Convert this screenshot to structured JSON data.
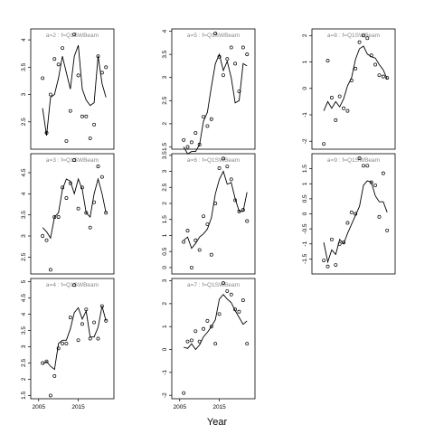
{
  "figure": {
    "xlabel": "Year"
  },
  "chart_data": [
    {
      "type": "line",
      "title": "a=2  :  f=Q1SWBeam",
      "xlim": [
        2003,
        2024
      ],
      "ylim": [
        2.0,
        4.2
      ],
      "xticks": [],
      "yticks": [
        2.5,
        3.0,
        3.5,
        4.0
      ],
      "series": [
        {
          "mode": "points",
          "x": [
            2006,
            2007,
            2008,
            2009,
            2010,
            2011,
            2012,
            2013,
            2014,
            2015,
            2016,
            2017,
            2018,
            2019,
            2020,
            2021,
            2022
          ],
          "y": [
            3.3,
            2.3,
            3.0,
            3.65,
            3.55,
            3.85,
            2.15,
            2.7,
            4.1,
            3.35,
            2.6,
            2.6,
            2.2,
            2.45,
            3.7,
            3.4,
            3.5
          ]
        },
        {
          "mode": "line",
          "x": [
            2006,
            2007,
            2008,
            2009,
            2010,
            2011,
            2012,
            2013,
            2014,
            2015,
            2016,
            2017,
            2018,
            2019,
            2020,
            2021,
            2022
          ],
          "y": [
            2.75,
            2.25,
            2.95,
            3.0,
            3.3,
            3.7,
            3.4,
            3.1,
            3.7,
            3.9,
            3.1,
            2.9,
            2.8,
            2.85,
            3.7,
            3.2,
            2.95
          ]
        }
      ]
    },
    {
      "type": "line",
      "title": "a=5  :  f=Q1SWBeam",
      "xlim": [
        2003,
        2024
      ],
      "ylim": [
        1.45,
        4.05
      ],
      "xticks": [],
      "yticks": [
        1.5,
        2.0,
        2.5,
        3.0,
        3.5,
        4.0
      ],
      "series": [
        {
          "mode": "points",
          "x": [
            2006,
            2007,
            2008,
            2009,
            2010,
            2011,
            2012,
            2013,
            2014,
            2015,
            2016,
            2017,
            2018,
            2019,
            2020,
            2021,
            2022
          ],
          "y": [
            1.65,
            1.5,
            1.6,
            1.8,
            1.55,
            2.15,
            1.95,
            2.1,
            3.95,
            3.45,
            3.05,
            3.4,
            3.65,
            3.3,
            2.7,
            3.65,
            3.5
          ]
        },
        {
          "mode": "line",
          "x": [
            2006,
            2007,
            2008,
            2009,
            2010,
            2011,
            2012,
            2013,
            2014,
            2015,
            2016,
            2017,
            2018,
            2019,
            2020,
            2021,
            2022
          ],
          "y": [
            1.5,
            1.35,
            1.4,
            1.4,
            1.55,
            2.05,
            2.25,
            2.8,
            3.3,
            3.5,
            3.15,
            3.35,
            3.0,
            2.45,
            2.5,
            3.3,
            3.25
          ]
        }
      ]
    },
    {
      "type": "line",
      "title": "a=8  :  f=Q1SWBeam",
      "xlim": [
        2003,
        2024
      ],
      "ylim": [
        -2.3,
        2.25
      ],
      "xticks": [],
      "yticks": [
        -2,
        -1,
        0,
        1,
        2
      ],
      "series": [
        {
          "mode": "points",
          "x": [
            2006,
            2007,
            2008,
            2009,
            2010,
            2011,
            2012,
            2013,
            2014,
            2015,
            2016,
            2017,
            2018,
            2019,
            2020,
            2021,
            2022
          ],
          "y": [
            -2.1,
            1.05,
            -0.35,
            -1.2,
            -0.3,
            -0.75,
            -0.85,
            0.3,
            0.75,
            1.75,
            2.0,
            1.9,
            1.25,
            0.9,
            0.5,
            0.45,
            0.4
          ]
        },
        {
          "mode": "line",
          "x": [
            2006,
            2007,
            2008,
            2009,
            2010,
            2011,
            2012,
            2013,
            2014,
            2015,
            2016,
            2017,
            2018,
            2019,
            2020,
            2021,
            2022
          ],
          "y": [
            -0.85,
            -0.5,
            -0.75,
            -0.5,
            -0.7,
            -0.4,
            0.1,
            0.4,
            1.1,
            1.5,
            1.6,
            1.3,
            1.2,
            1.15,
            0.9,
            0.7,
            0.35
          ]
        }
      ]
    },
    {
      "type": "line",
      "title": "a=3  :  f=Q1SWBeam",
      "xlim": [
        2003,
        2024
      ],
      "ylim": [
        2.1,
        4.95
      ],
      "xticks": [],
      "yticks": [
        2.5,
        3.0,
        3.5,
        4.0,
        4.5
      ],
      "series": [
        {
          "mode": "points",
          "x": [
            2006,
            2007,
            2008,
            2009,
            2010,
            2011,
            2012,
            2013,
            2014,
            2015,
            2016,
            2017,
            2018,
            2019,
            2020,
            2021,
            2022
          ],
          "y": [
            3.0,
            2.9,
            2.2,
            3.45,
            3.45,
            4.15,
            3.9,
            4.25,
            4.8,
            3.65,
            4.15,
            3.55,
            3.2,
            3.8,
            4.65,
            4.4,
            3.55
          ]
        },
        {
          "mode": "line",
          "x": [
            2006,
            2007,
            2008,
            2009,
            2010,
            2011,
            2012,
            2013,
            2014,
            2015,
            2016,
            2017,
            2018,
            2019,
            2020,
            2021,
            2022
          ],
          "y": [
            3.2,
            3.1,
            2.95,
            3.45,
            3.55,
            4.1,
            4.35,
            4.3,
            4.0,
            4.35,
            4.1,
            3.55,
            3.45,
            4.0,
            4.35,
            4.0,
            3.55
          ]
        }
      ]
    },
    {
      "type": "line",
      "title": "a=6  :  f=Q1SWBeam",
      "xlim": [
        2003,
        2024
      ],
      "ylim": [
        -0.2,
        3.55
      ],
      "xticks": [],
      "yticks": [
        0.0,
        0.5,
        1.0,
        1.5,
        2.0,
        2.5,
        3.0,
        3.5
      ],
      "series": [
        {
          "mode": "points",
          "x": [
            2006,
            2007,
            2008,
            2009,
            2010,
            2011,
            2012,
            2013,
            2014,
            2015,
            2016,
            2017,
            2018,
            2019,
            2020,
            2021,
            2022
          ],
          "y": [
            0.8,
            1.15,
            0.0,
            0.85,
            0.55,
            1.6,
            1.35,
            0.4,
            2.0,
            3.1,
            3.4,
            3.15,
            2.75,
            2.1,
            1.75,
            1.8,
            1.45
          ]
        },
        {
          "mode": "line",
          "x": [
            2006,
            2007,
            2008,
            2009,
            2010,
            2011,
            2012,
            2013,
            2014,
            2015,
            2016,
            2017,
            2018,
            2019,
            2020,
            2021,
            2022
          ],
          "y": [
            0.85,
            0.95,
            0.6,
            0.75,
            0.95,
            1.05,
            1.2,
            1.55,
            2.3,
            2.75,
            3.0,
            2.6,
            2.65,
            2.15,
            1.75,
            1.75,
            2.35
          ]
        }
      ]
    },
    {
      "type": "line",
      "title": "a=9  :  f=Q1SWBeam",
      "xlim": [
        2003,
        2024
      ],
      "ylim": [
        -2.0,
        2.0
      ],
      "xticks": [],
      "yticks": [
        -1.5,
        -1.0,
        -0.5,
        0.0,
        0.5,
        1.0,
        1.5
      ],
      "series": [
        {
          "mode": "points",
          "x": [
            2006,
            2007,
            2008,
            2009,
            2010,
            2011,
            2012,
            2013,
            2014,
            2015,
            2016,
            2017,
            2018,
            2019,
            2020,
            2021,
            2022
          ],
          "y": [
            -1.55,
            -1.75,
            -0.85,
            -1.7,
            -1.0,
            -0.95,
            -0.3,
            0.05,
            0.0,
            1.85,
            1.6,
            1.6,
            1.05,
            0.95,
            -0.1,
            1.35,
            -0.55
          ]
        },
        {
          "mode": "line",
          "x": [
            2006,
            2007,
            2008,
            2009,
            2010,
            2011,
            2012,
            2013,
            2014,
            2015,
            2016,
            2017,
            2018,
            2019,
            2020,
            2021,
            2022
          ],
          "y": [
            -0.95,
            -1.6,
            -1.2,
            -1.35,
            -0.85,
            -1.0,
            -0.65,
            -0.35,
            -0.05,
            0.25,
            0.95,
            1.1,
            1.05,
            0.6,
            0.4,
            0.4,
            0.05
          ]
        }
      ]
    },
    {
      "type": "line",
      "title": "a=4  :  f=Q1SWBeam",
      "xlim": [
        2003,
        2024
      ],
      "ylim": [
        1.4,
        5.1
      ],
      "xticks": [
        2005,
        2015
      ],
      "yticks": [
        1.5,
        2.0,
        2.5,
        3.0,
        3.5,
        4.0,
        4.5,
        5.0
      ],
      "series": [
        {
          "mode": "points",
          "x": [
            2006,
            2007,
            2008,
            2009,
            2010,
            2011,
            2012,
            2013,
            2014,
            2015,
            2016,
            2017,
            2018,
            2019,
            2020,
            2021,
            2022
          ],
          "y": [
            2.5,
            2.55,
            1.5,
            2.1,
            2.95,
            3.1,
            3.1,
            3.9,
            4.9,
            3.2,
            3.7,
            4.15,
            3.25,
            3.75,
            3.25,
            4.25,
            3.8
          ]
        },
        {
          "mode": "line",
          "x": [
            2006,
            2007,
            2008,
            2009,
            2010,
            2011,
            2012,
            2013,
            2014,
            2015,
            2016,
            2017,
            2018,
            2019,
            2020,
            2021,
            2022
          ],
          "y": [
            2.45,
            2.55,
            2.4,
            2.3,
            3.1,
            3.2,
            3.2,
            3.55,
            4.05,
            4.2,
            3.85,
            4.1,
            3.3,
            3.3,
            3.6,
            4.25,
            3.8
          ]
        }
      ]
    },
    {
      "type": "line",
      "title": "a=7  :  f=Q1SWBeam",
      "xlim": [
        2003,
        2024
      ],
      "ylim": [
        -2.15,
        3.1
      ],
      "xticks": [
        2005,
        2015
      ],
      "yticks": [
        -2,
        -1,
        0,
        1,
        2,
        3
      ],
      "series": [
        {
          "mode": "points",
          "x": [
            2006,
            2007,
            2008,
            2009,
            2010,
            2011,
            2012,
            2013,
            2014,
            2015,
            2016,
            2017,
            2018,
            2019,
            2020,
            2021,
            2022
          ],
          "y": [
            -1.9,
            0.35,
            0.4,
            0.8,
            0.35,
            0.9,
            1.25,
            1.0,
            0.25,
            1.55,
            2.9,
            2.55,
            2.4,
            1.75,
            1.65,
            2.15,
            0.25
          ]
        },
        {
          "mode": "line",
          "x": [
            2006,
            2007,
            2008,
            2009,
            2010,
            2011,
            2012,
            2013,
            2014,
            2015,
            2016,
            2017,
            2018,
            2019,
            2020,
            2021,
            2022
          ],
          "y": [
            0.1,
            0.05,
            0.25,
            0.0,
            0.2,
            0.55,
            0.75,
            1.0,
            1.3,
            2.2,
            2.4,
            2.2,
            2.05,
            1.7,
            1.4,
            1.1,
            1.25
          ]
        }
      ]
    }
  ]
}
